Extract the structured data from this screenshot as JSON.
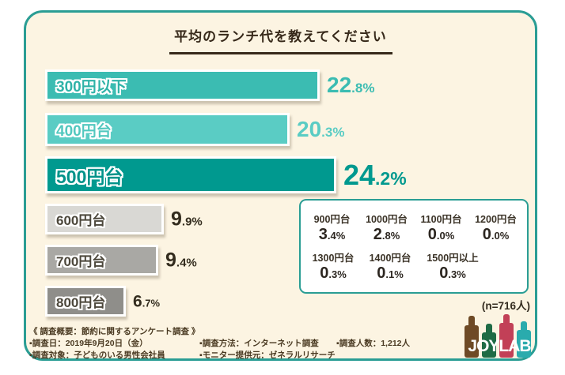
{
  "title": "平均のランチ代を教えてください",
  "chart_data": {
    "type": "bar",
    "orientation": "horizontal",
    "title": "平均のランチ代を教えてください",
    "unit": "%",
    "bars": [
      {
        "label": "300円以下",
        "value": 22.8,
        "bar_color": "#3bbcb2",
        "label_color": "#2fb3a8",
        "value_color": "#3bbcb2",
        "emphasis": false
      },
      {
        "label": "400円台",
        "value": 20.3,
        "bar_color": "#5accc4",
        "label_color": "#52c8bf",
        "value_color": "#5accc4",
        "emphasis": false
      },
      {
        "label": "500円台",
        "value": 24.2,
        "bar_color": "#00998f",
        "label_color": "#00938a",
        "value_color": "#00998f",
        "emphasis": true
      },
      {
        "label": "600円台",
        "value": 9.9,
        "bar_color": "#d9d8d4",
        "label_color": "#4b463a",
        "value_color": "#332c1e",
        "emphasis": false
      },
      {
        "label": "700円台",
        "value": 9.4,
        "bar_color": "#a9a8a4",
        "label_color": "#4b463a",
        "value_color": "#332c1e",
        "emphasis": false
      },
      {
        "label": "800円台",
        "value": 6.7,
        "bar_color": "#8f8e8a",
        "label_color": "#4b463a",
        "value_color": "#332c1e",
        "emphasis": false
      }
    ],
    "others": {
      "rows": [
        [
          {
            "label": "900円台",
            "value": 3.4
          },
          {
            "label": "1000円台",
            "value": 2.8
          },
          {
            "label": "1100円台",
            "value": 0.0
          },
          {
            "label": "1200円台",
            "value": 0.0
          }
        ],
        [
          {
            "label": "1300円台",
            "value": 0.3
          },
          {
            "label": "1400円台",
            "value": 0.1
          },
          {
            "label": "1500円以上",
            "value": 0.3
          }
        ]
      ]
    },
    "sample_size_note": "(n=716人)",
    "legend_position": "none",
    "grid": false
  },
  "survey_note": {
    "heading": "《 調査概要：節約に関するアンケート調査 》",
    "rows": [
      [
        "▪調査日：2019年9月20日（金）",
        "▪調査方法：インターネット調査",
        "▪調査人数：1,212人"
      ],
      [
        "▪調査対象：子どものいる男性会社員",
        "▪モニター提供元：ゼネラルリサーチ"
      ]
    ]
  },
  "logo": {
    "text": "JOYLAB",
    "bottle_colors": [
      "#6e4a26",
      "#1f6b45",
      "#c24057",
      "#2aabad"
    ]
  },
  "colors": {
    "card_bg": "#fcf4e2",
    "card_border": "#2a9d94",
    "title_text": "#37291a",
    "footer_text": "#4a3a22"
  }
}
